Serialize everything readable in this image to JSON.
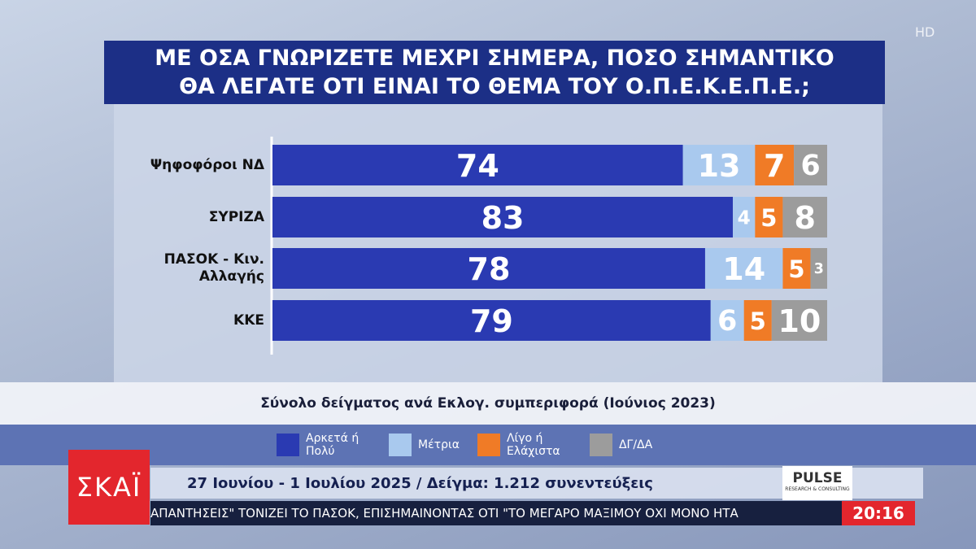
{
  "chart_data": {
    "type": "stacked-bar-horizontal",
    "title": "ΜΕ ΟΣΑ ΓΝΩΡΙΖΕΤΕ ΜΕΧΡΙ ΣΗΜΕΡΑ, ΠΟΣΟ ΣΗΜΑΝΤΙΚΟ ΘΑ ΛΕΓΑΤΕ ΟΤΙ ΕΙΝΑΙ ΤΟ ΘΕΜΑ ΤΟΥ Ο.Π.Ε.Κ.Ε.Π.Ε.;",
    "subtitle": "Σύνολο δείγματος ανά Εκλογ. συμπεριφορά (Ιούνιος 2023)",
    "categories": [
      "Ψηφοφόροι ΝΔ",
      "ΣΥΡΙΖΑ",
      "ΠΑΣΟΚ - Κιν. Αλλαγής",
      "ΚΚΕ"
    ],
    "series": [
      {
        "name": "Αρκετά ή Πολύ",
        "color": "#2a3ab2",
        "values": [
          74,
          83,
          78,
          79
        ]
      },
      {
        "name": "Μέτρια",
        "color": "#a9c9ee",
        "values": [
          13,
          4,
          14,
          6
        ]
      },
      {
        "name": "Λίγο ή Ελάχιστα",
        "color": "#f07b26",
        "values": [
          7,
          5,
          5,
          5
        ]
      },
      {
        "name": "ΔΓ/ΔΑ",
        "color": "#9c9c9c",
        "values": [
          6,
          8,
          3,
          10
        ]
      }
    ]
  },
  "broadcast": {
    "channel": "ΣΚΑΪ",
    "hd": "HD",
    "survey_info": "27 Ιουνίου - 1 Ιουλίου 2025 / Δείγμα: 1.212 συνεντεύξεις",
    "pollster": "PULSE",
    "pollster_tagline": "RESEARCH & CONSULTING",
    "ticker": "ΑΠΑΝΤΗΣΕΙΣ\" ΤΟΝΙΖΕΙ ΤΟ ΠΑΣΟΚ, ΕΠΙΣΗΜΑΙΝΟΝΤΑΣ ΟΤΙ \"ΤΟ ΜΕΓΑΡΟ ΜΑΞΙΜΟΥ ΟΧΙ ΜΟΝΟ ΗΤΑ",
    "time": "20:16"
  }
}
